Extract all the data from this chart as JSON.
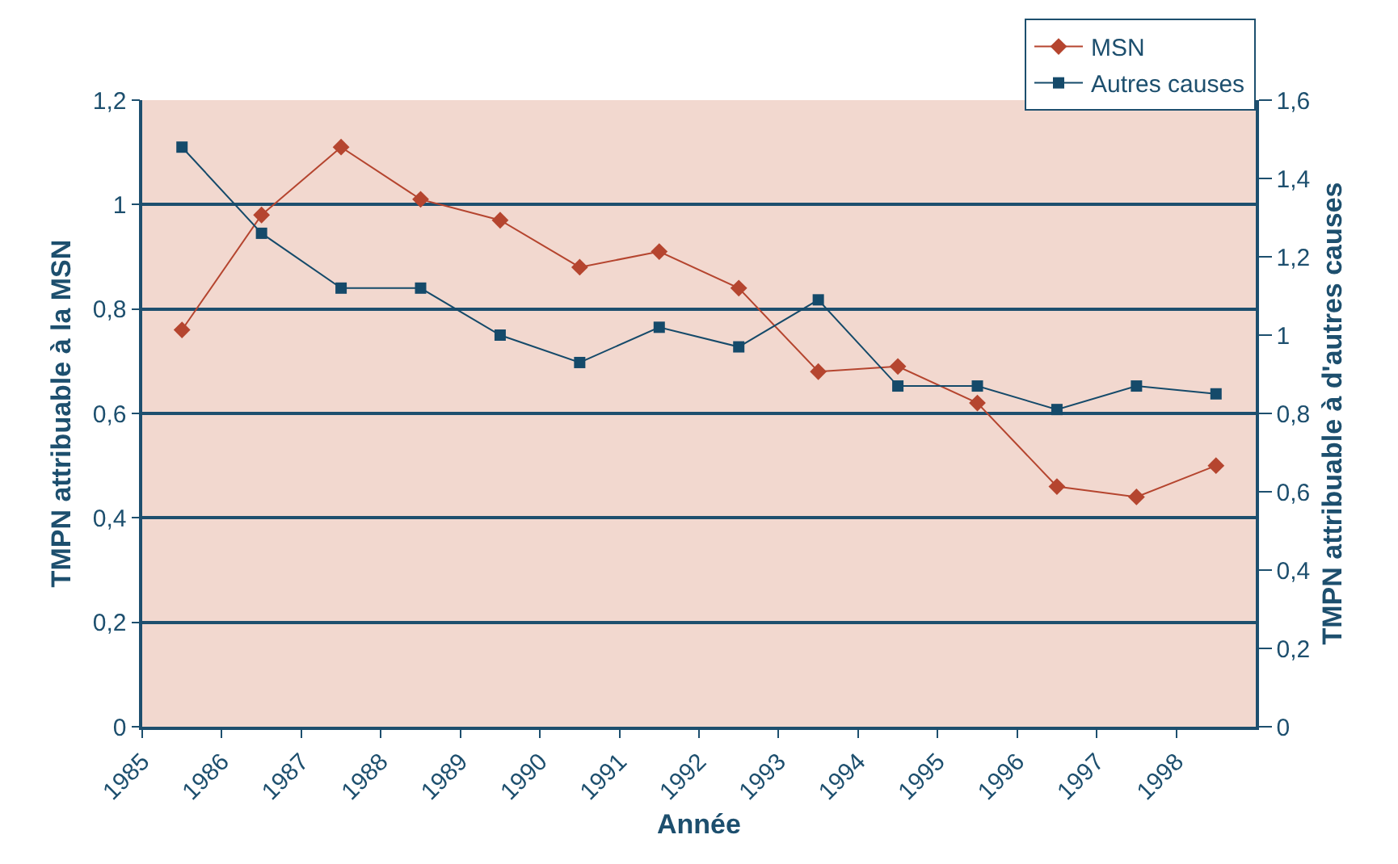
{
  "chart_data": {
    "type": "line",
    "xlabel": "Année",
    "ylabel": "TMPN attribuable à la MSN",
    "y2label": "TMPN attribuable à d'autres causes",
    "x": [
      1985.5,
      1986.5,
      1987.5,
      1988.5,
      1989.5,
      1990.5,
      1991.5,
      1992.5,
      1993.5,
      1994.5,
      1995.5,
      1996.5,
      1997.5,
      1998.5
    ],
    "series": [
      {
        "name": "MSN",
        "color": "#b5452f",
        "marker": "diamond",
        "values": [
          0.76,
          0.98,
          1.11,
          1.01,
          0.97,
          0.88,
          0.91,
          0.84,
          0.68,
          0.69,
          0.62,
          0.46,
          0.44,
          0.5
        ]
      },
      {
        "name": "Autres causes",
        "color": "#154a6a",
        "marker": "square",
        "axis": "y2",
        "values": [
          1.48,
          1.26,
          1.12,
          1.12,
          1.0,
          0.93,
          1.02,
          0.97,
          1.09,
          0.87,
          0.87,
          0.81,
          0.87,
          0.85
        ]
      }
    ],
    "xlim": [
      1985,
      1999
    ],
    "xticks": [
      1985,
      1986,
      1987,
      1988,
      1989,
      1990,
      1991,
      1992,
      1993,
      1994,
      1995,
      1996,
      1997,
      1998
    ],
    "ylim": [
      0,
      1.2
    ],
    "yticks": [
      0,
      {
        "value": 0.2,
        "label": "0,2"
      },
      {
        "value": 0.4,
        "label": "0,4"
      },
      {
        "value": 0.6,
        "label": "0,6"
      },
      {
        "value": 0.8,
        "label": "0,8"
      },
      1,
      {
        "value": 1.2,
        "label": "1,2"
      }
    ],
    "y2lim": [
      0,
      1.6
    ],
    "y2ticks": [
      0,
      {
        "value": 0.2,
        "label": "0,2"
      },
      {
        "value": 0.4,
        "label": "0,4"
      },
      {
        "value": 0.6,
        "label": "0,6"
      },
      {
        "value": 0.8,
        "label": "0,8"
      },
      1,
      {
        "value": 1.2,
        "label": "1,2"
      },
      {
        "value": 1.4,
        "label": "1,4"
      },
      {
        "value": 1.6,
        "label": "1,6"
      }
    ],
    "grid": "y",
    "legend": "top right",
    "line_style": "solid"
  }
}
